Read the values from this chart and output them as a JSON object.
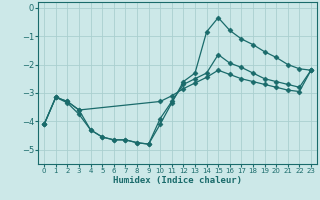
{
  "xlabel": "Humidex (Indice chaleur)",
  "bg_color": "#cce8e8",
  "grid_color": "#aacfcf",
  "line_color": "#1a6b6b",
  "marker": "D",
  "marker_size": 2.5,
  "xlim": [
    -0.5,
    23.5
  ],
  "ylim": [
    -5.5,
    0.2
  ],
  "xticks": [
    0,
    1,
    2,
    3,
    4,
    5,
    6,
    7,
    8,
    9,
    10,
    11,
    12,
    13,
    14,
    15,
    16,
    17,
    18,
    19,
    20,
    21,
    22,
    23
  ],
  "yticks": [
    0,
    -1,
    -2,
    -3,
    -4,
    -5
  ],
  "line1_x": [
    0,
    1,
    2,
    3,
    4,
    5,
    6,
    7,
    8,
    9,
    10,
    11,
    12,
    13,
    14,
    15,
    16,
    17,
    18,
    19,
    20,
    21,
    22,
    23
  ],
  "line1_y": [
    -4.1,
    -3.15,
    -3.3,
    -3.6,
    -4.3,
    -4.55,
    -4.65,
    -4.65,
    -4.75,
    -4.8,
    -4.1,
    -3.35,
    -2.6,
    -2.3,
    -0.85,
    -0.35,
    -0.8,
    -1.1,
    -1.3,
    -1.55,
    -1.75,
    -2.0,
    -2.15,
    -2.2
  ],
  "line2_x": [
    0,
    1,
    2,
    3,
    10,
    11,
    12,
    13,
    14,
    15,
    16,
    17,
    18,
    19,
    20,
    21,
    22,
    23
  ],
  "line2_y": [
    -4.1,
    -3.15,
    -3.3,
    -3.6,
    -3.3,
    -3.1,
    -2.85,
    -2.65,
    -2.45,
    -2.2,
    -2.35,
    -2.5,
    -2.6,
    -2.7,
    -2.8,
    -2.9,
    -2.95,
    -2.2
  ],
  "line3_x": [
    0,
    1,
    2,
    3,
    4,
    5,
    6,
    7,
    8,
    9,
    10,
    11,
    12,
    13,
    14,
    15,
    16,
    17,
    18,
    19,
    20,
    21,
    22,
    23
  ],
  "line3_y": [
    -4.1,
    -3.15,
    -3.35,
    -3.75,
    -4.3,
    -4.55,
    -4.65,
    -4.65,
    -4.75,
    -4.8,
    -3.9,
    -3.3,
    -2.7,
    -2.5,
    -2.3,
    -1.65,
    -1.95,
    -2.1,
    -2.3,
    -2.5,
    -2.6,
    -2.7,
    -2.8,
    -2.2
  ]
}
